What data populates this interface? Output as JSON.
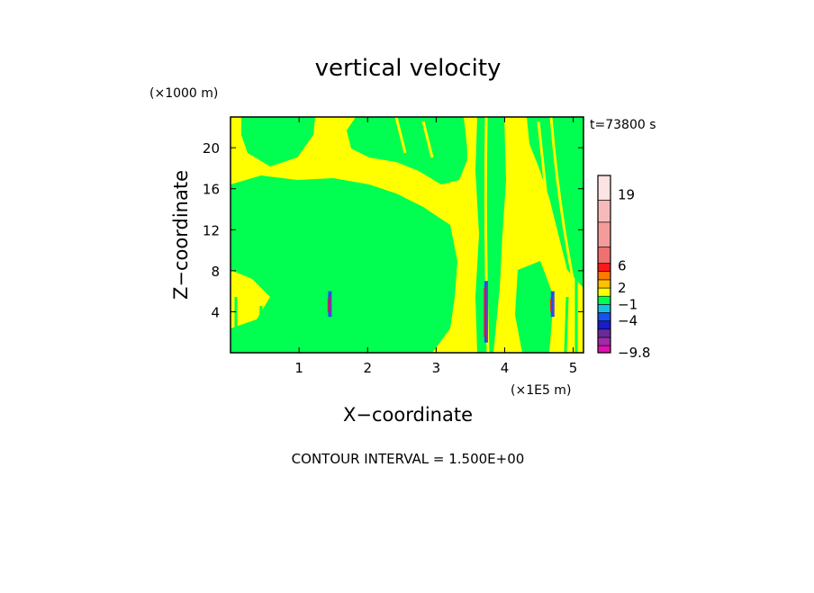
{
  "chart_data": {
    "type": "heatmap",
    "title": "vertical velocity",
    "xlabel": "X−coordinate",
    "ylabel": "Z−coordinate",
    "x_unit": "(×1E5 m)",
    "y_unit": "(×1000 m)",
    "time_label": "t=73800 s",
    "contour_interval_text": "CONTOUR INTERVAL = 1.500E+00",
    "xlim": [
      0,
      5.15
    ],
    "ylim": [
      0,
      23
    ],
    "x_ticks": [
      1,
      2,
      3,
      4,
      5
    ],
    "y_ticks": [
      4,
      8,
      12,
      16,
      20
    ],
    "colorbar": {
      "min": -9.8,
      "max": 22.5,
      "tick_values": [
        19,
        6,
        2,
        -1,
        -4,
        -9.8
      ],
      "tick_labels": [
        "19",
        "6",
        "2",
        "−1",
        "−4",
        "−9.8"
      ],
      "bands": [
        {
          "low": -9.8,
          "high": -8.5,
          "color": "#e010b0"
        },
        {
          "low": -8.5,
          "high": -7,
          "color": "#a02aa8"
        },
        {
          "low": -7,
          "high": -5.5,
          "color": "#6a2a9a"
        },
        {
          "low": -5.5,
          "high": -4,
          "color": "#1a1ad0"
        },
        {
          "low": -4,
          "high": -2.5,
          "color": "#1a50f0"
        },
        {
          "low": -2.5,
          "high": -1,
          "color": "#18c0e0"
        },
        {
          "low": -1,
          "high": 0.5,
          "color": "#00ff50"
        },
        {
          "low": 0.5,
          "high": 2,
          "color": "#ffff00"
        },
        {
          "low": 2,
          "high": 3.5,
          "color": "#ffc000"
        },
        {
          "low": 3.5,
          "high": 5,
          "color": "#ff7a00"
        },
        {
          "low": 5,
          "high": 6.5,
          "color": "#ff1a1a"
        },
        {
          "low": 6.5,
          "high": 9.5,
          "color": "#f07070"
        },
        {
          "low": 9.5,
          "high": 14,
          "color": "#f49b9b"
        },
        {
          "low": 14,
          "high": 18,
          "color": "#f7baba"
        },
        {
          "low": 18,
          "high": 22.5,
          "color": "#fde3e3"
        }
      ]
    },
    "plume_x": [
      1.45,
      3.73,
      4.7
    ]
  },
  "colors": {
    "positive_field": "#ffff00",
    "neutral_field": "#00ff50",
    "frame": "#000000"
  }
}
